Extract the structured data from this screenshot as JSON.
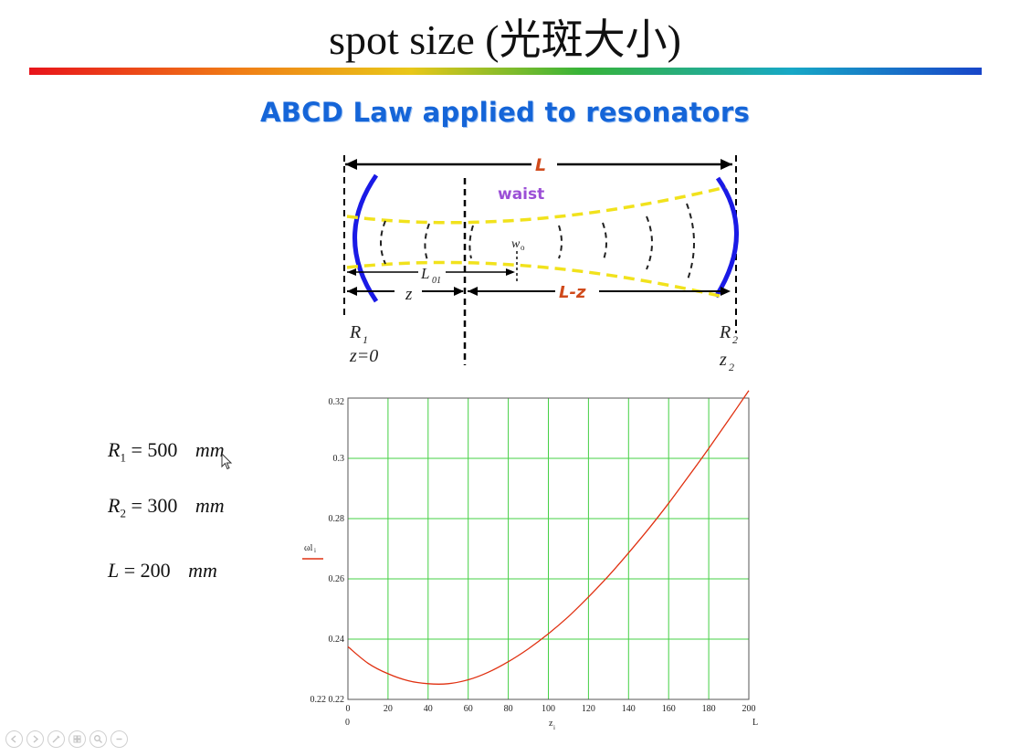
{
  "slide": {
    "title": "spot size (光斑大小)",
    "subtitle": "ABCD Law applied to resonators"
  },
  "diagram": {
    "label_L": "L",
    "label_waist": "waist",
    "label_w0": "w",
    "label_w0_sub": "o",
    "label_L01": "L",
    "label_L01_sub": "01",
    "label_z": "z",
    "label_Lz": "L-z",
    "label_R1": "R",
    "label_R1_sub": "1",
    "label_z0": "z=0",
    "label_R2": "R",
    "label_R2_sub": "2",
    "label_z2": "z",
    "label_z2_sub": "2",
    "colors": {
      "mirror": "#1a1ae6",
      "beam": "#f1e21c",
      "label_red": "#d04a1b",
      "label_purple": "#9b4fd6"
    }
  },
  "equations": [
    {
      "var": "R",
      "sub": "1",
      "rhs": "= 500",
      "unit": "mm"
    },
    {
      "var": "R",
      "sub": "2",
      "rhs": "= 300",
      "unit": "mm"
    },
    {
      "var": "L",
      "sub": "",
      "rhs": "= 200",
      "unit": "mm"
    }
  ],
  "chart_data": {
    "type": "line",
    "series": [
      {
        "x": [
          0,
          10,
          20,
          30,
          40,
          50,
          60,
          70,
          80,
          90,
          100,
          110,
          120,
          130,
          140,
          150,
          160,
          170,
          180,
          190,
          200
        ],
        "y": [
          0.2375,
          0.232,
          0.2285,
          0.2262,
          0.2252,
          0.2252,
          0.2265,
          0.229,
          0.2325,
          0.2368,
          0.2418,
          0.2475,
          0.254,
          0.261,
          0.2686,
          0.2766,
          0.2851,
          0.2941,
          0.3033,
          0.3128,
          0.3225
        ],
        "color": "#e03010"
      }
    ],
    "xlabel": "z",
    "xlabel_sub": "i",
    "ylabel": "ωl",
    "ylabel_sub": "i",
    "xlim": [
      0,
      200
    ],
    "ylim": [
      0.22,
      0.32
    ],
    "x_ticks": [
      "0",
      "20",
      "40",
      "60",
      "80",
      "100",
      "120",
      "140",
      "160",
      "180",
      "200"
    ],
    "y_ticks": [
      "0.22",
      "0.24",
      "0.26",
      "0.28",
      "0.3",
      "0.32"
    ],
    "x_range_low": "0",
    "x_range_high": "L",
    "y_range_low": "0.22",
    "grid": true,
    "colors": {
      "grid": "#44d044",
      "line": "#e03010"
    }
  }
}
